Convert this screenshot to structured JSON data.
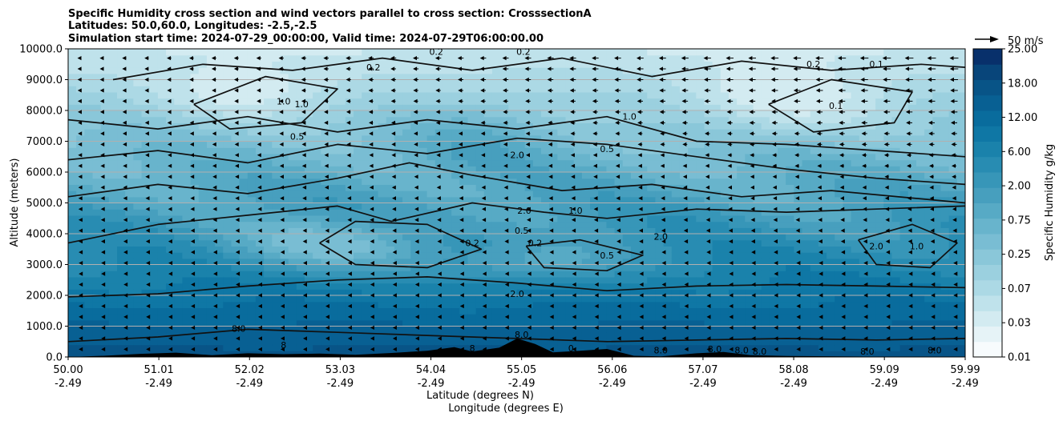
{
  "chart_data": {
    "type": "heatmap",
    "title_lines": [
      "Specific Humidity cross section and wind vectors parallel to cross section: CrosssectionA",
      "Latitudes: 50.0,60.0, Longitudes: -2.5,-2.5",
      "Simulation start time: 2024-07-29_00:00:00, Valid time: 2024-07-29T06:00:00.00"
    ],
    "xlabel": "Latitude (degrees N)",
    "xlabel2": "Longitude (degrees E)",
    "ylabel": "Altitude (meters)",
    "xlim": [
      50.0,
      59.99
    ],
    "ylim": [
      0,
      10000
    ],
    "x_ticks": [
      {
        "lat": "50.00",
        "lon": "-2.49",
        "value": 50.0
      },
      {
        "lat": "51.01",
        "lon": "-2.49",
        "value": 51.01
      },
      {
        "lat": "52.02",
        "lon": "-2.49",
        "value": 52.02
      },
      {
        "lat": "53.03",
        "lon": "-2.49",
        "value": 53.03
      },
      {
        "lat": "54.04",
        "lon": "-2.49",
        "value": 54.04
      },
      {
        "lat": "55.05",
        "lon": "-2.49",
        "value": 55.05
      },
      {
        "lat": "56.06",
        "lon": "-2.49",
        "value": 56.06
      },
      {
        "lat": "57.07",
        "lon": "-2.49",
        "value": 57.07
      },
      {
        "lat": "58.08",
        "lon": "-2.49",
        "value": 58.08
      },
      {
        "lat": "59.09",
        "lon": "-2.49",
        "value": 59.09
      },
      {
        "lat": "59.99",
        "lon": "-2.49",
        "value": 59.99
      }
    ],
    "y_ticks": [
      {
        "label": "0.0",
        "value": 0
      },
      {
        "label": "1000.0",
        "value": 1000
      },
      {
        "label": "2000.0",
        "value": 2000
      },
      {
        "label": "3000.0",
        "value": 3000
      },
      {
        "label": "4000.0",
        "value": 4000
      },
      {
        "label": "5000.0",
        "value": 5000
      },
      {
        "label": "6000.0",
        "value": 6000
      },
      {
        "label": "7000.0",
        "value": 7000
      },
      {
        "label": "8000.0",
        "value": 8000
      },
      {
        "label": "9000.0",
        "value": 9000
      },
      {
        "label": "10000.0",
        "value": 10000
      }
    ],
    "grid": "horizontal",
    "colorbar": {
      "label": "Specific Humidity g/kg",
      "tick_labels": [
        "0.01",
        "0.03",
        "0.07",
        "0.25",
        "0.75",
        "2.00",
        "6.00",
        "12.00",
        "18.00",
        "25.00"
      ],
      "levels": 20,
      "colors": [
        "#f7fbfd",
        "#e6f3f7",
        "#d3ebf1",
        "#bfe2eb",
        "#acd9e5",
        "#9bd0df",
        "#8ac7d9",
        "#79bdd3",
        "#68b4cc",
        "#57aac5",
        "#479fbe",
        "#3796b8",
        "#288cb2",
        "#1a82ab",
        "#0f77a5",
        "#096c9d",
        "#086093",
        "#085487",
        "#08457a",
        "#08306b"
      ]
    },
    "quiver_key": {
      "label": "50 m/s",
      "speed": 50
    },
    "contour_labels": [
      {
        "text": "0.2",
        "lat": 53.4,
        "alt": 9300
      },
      {
        "text": "0.2",
        "lat": 54.1,
        "alt": 9800
      },
      {
        "text": "0.2",
        "lat": 55.07,
        "alt": 9800
      },
      {
        "text": "0.2",
        "lat": 58.3,
        "alt": 9400
      },
      {
        "text": "0.1",
        "lat": 58.55,
        "alt": 8050
      },
      {
        "text": "0.1",
        "lat": 59.0,
        "alt": 9400
      },
      {
        "text": "1.0",
        "lat": 52.4,
        "alt": 8200
      },
      {
        "text": "1.0",
        "lat": 52.6,
        "alt": 8100
      },
      {
        "text": "0.5",
        "lat": 52.55,
        "alt": 7050
      },
      {
        "text": "2.0",
        "lat": 55.0,
        "alt": 6450
      },
      {
        "text": "1.0",
        "lat": 56.25,
        "alt": 7700
      },
      {
        "text": "0.5",
        "lat": 56.0,
        "alt": 6650
      },
      {
        "text": "2.0",
        "lat": 55.08,
        "alt": 4650
      },
      {
        "text": "1.0",
        "lat": 55.65,
        "alt": 4650
      },
      {
        "text": "0.5",
        "lat": 55.05,
        "alt": 4000
      },
      {
        "text": "0.2",
        "lat": 54.5,
        "alt": 3600
      },
      {
        "text": "0.2",
        "lat": 55.2,
        "alt": 3600
      },
      {
        "text": "0.5",
        "lat": 56.0,
        "alt": 3200
      },
      {
        "text": "2.0",
        "lat": 56.6,
        "alt": 3800
      },
      {
        "text": "2.0",
        "lat": 59.0,
        "alt": 3500
      },
      {
        "text": "1.0",
        "lat": 59.45,
        "alt": 3500
      },
      {
        "text": "2.0",
        "lat": 55.0,
        "alt": 1950
      },
      {
        "text": "8.0",
        "lat": 51.9,
        "alt": 820
      },
      {
        "text": "8.0",
        "lat": 55.05,
        "alt": 620
      },
      {
        "text": "8",
        "lat": 52.4,
        "alt": 280
      },
      {
        "text": "8",
        "lat": 54.5,
        "alt": 180
      },
      {
        "text": "0",
        "lat": 55.6,
        "alt": 180
      },
      {
        "text": "8.0",
        "lat": 56.6,
        "alt": 120
      },
      {
        "text": "8.0",
        "lat": 57.2,
        "alt": 160
      },
      {
        "text": "8.0",
        "lat": 57.5,
        "alt": 120
      },
      {
        "text": "8.0",
        "lat": 57.7,
        "alt": 80
      },
      {
        "text": "8.0",
        "lat": 58.9,
        "alt": 80
      },
      {
        "text": "8.0",
        "lat": 59.65,
        "alt": 120
      }
    ]
  }
}
